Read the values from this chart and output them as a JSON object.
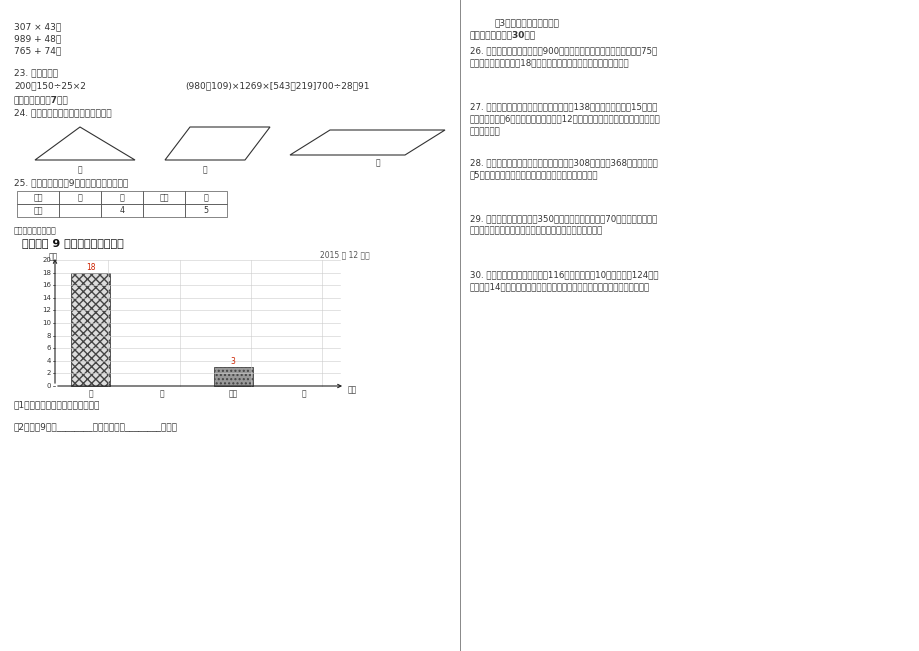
{
  "bg_color": "#ffffff",
  "left_content": {
    "lines_top": [
      "307 × 43＝",
      "989 + 48＝",
      "765 + 74＝"
    ],
    "section23_label": "23. 竖式计算。",
    "section23_expr1": "200－150÷25×2",
    "section23_expr2": "(980－109)×1269×[543＋219]700÷28＋91",
    "section5_label": "五、操作题。（7分）",
    "section24_label": "24. 画出如图各图形给定底边上的高。",
    "shape_labels": [
      "底",
      "底",
      "底"
    ],
    "section25_label": "25. 下面是某市今年9月份天气情况统计表。",
    "table_headers": [
      "天气",
      "晴",
      "阴",
      "多云",
      "雨"
    ],
    "table_row": [
      "天数",
      "",
      "4",
      "",
      "5"
    ],
    "chart_subtitle": "绘制成统计图如下：",
    "chart_title": "某市今年 9 月份天气情况统计图",
    "chart_date": "2015 年 12 月制",
    "chart_ylabel": "天数",
    "chart_xlabel": "天气",
    "chart_categories": [
      "晴",
      "阴",
      "多云",
      "雨"
    ],
    "chart_values": [
      18,
      0,
      3,
      0
    ],
    "chart_ylim": [
      0,
      20
    ],
    "chart_yticks": [
      0,
      2,
      4,
      6,
      8,
      10,
      12,
      14,
      16,
      18,
      20
    ],
    "bar_labels": [
      "18",
      "",
      "3",
      ""
    ],
    "question1": "（1）请把统计表和统计图填完整。",
    "question2": "（2）该平9月中________的天数最多，________最少。"
  },
  "right_content": {
    "question3": "（3）你还获得什么信息？",
    "section6_label": "六、解决问题。（30分）",
    "q26": "26. 新学期，育才学校购买了900本图书分给全校各个班，每个班分得75本，又准备为每个班采购18副羽毛球拍，共需要采购多少副羽毛球拍？",
    "q27": "27. 某单位组织员工去春游，火车以每小时138千米的速度行驫了15小时后，距目的地还有6千米。如果返程必须在12小时以内返回，那么返程时火车的速度最少是多少？",
    "q28": "28. 贝贝在计算有余数的除法时，把被除数308错写成了368，结果商增加了5，而余数恰好相同。求这道除法算式的除数和余数。",
    "q29": "29. 甲、乙两个书架共放书350本。如果从甲书架拿出70本书放到乙书架上，这时两个书架上放的书相等。甲书架上原来放书多少本？",
    "q30": "30. 有甲、乙两列火车，甲车长116米，每秒行馿10米；乙车长124米，每秒行馿14米。两车相遇后，从甲车与乙车车头相遇到车尾分开需要多少秒？"
  }
}
